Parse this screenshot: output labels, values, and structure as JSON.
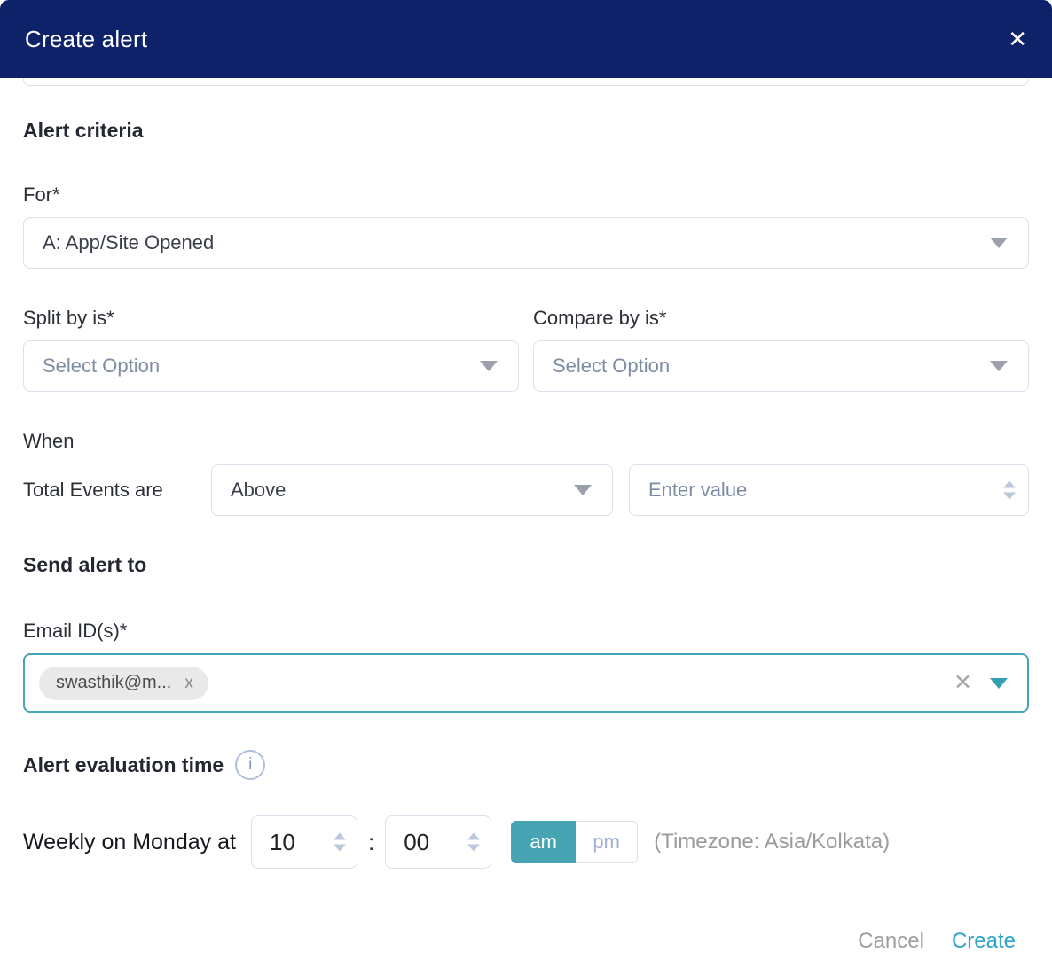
{
  "header": {
    "title": "Create alert",
    "close_icon": "✕"
  },
  "alert_criteria": {
    "heading": "Alert criteria"
  },
  "for_field": {
    "label": "For*",
    "value": "A: App/Site Opened"
  },
  "split_by": {
    "label": "Split by is*",
    "placeholder": "Select Option"
  },
  "compare_by": {
    "label": "Compare by is*",
    "placeholder": "Select Option"
  },
  "when": {
    "label": "When",
    "prefix": "Total Events are",
    "operator": "Above",
    "value_placeholder": "Enter value"
  },
  "send_alert_to": {
    "heading": "Send alert to"
  },
  "email": {
    "label": "Email ID(s)*",
    "chip": {
      "text": "swasthik@m...",
      "remove_icon": "x"
    },
    "clear_icon": "✕"
  },
  "evaluation": {
    "heading": "Alert evaluation time",
    "info_icon": "i"
  },
  "schedule": {
    "prefix": "Weekly on Monday at",
    "hour": "10",
    "separator": ":",
    "minute": "00",
    "am_label": "am",
    "pm_label": "pm",
    "timezone": "(Timezone: Asia/Kolkata)"
  },
  "footer": {
    "cancel_label": "Cancel",
    "create_label": "Create"
  },
  "colors": {
    "header_bg": "#0e2269",
    "accent_teal": "#47a4b3",
    "create_link": "#2fa3cb",
    "input_border": "#dbe0ec",
    "placeholder_text": "#7d8ca3",
    "chip_bg": "#e9e9e9"
  }
}
